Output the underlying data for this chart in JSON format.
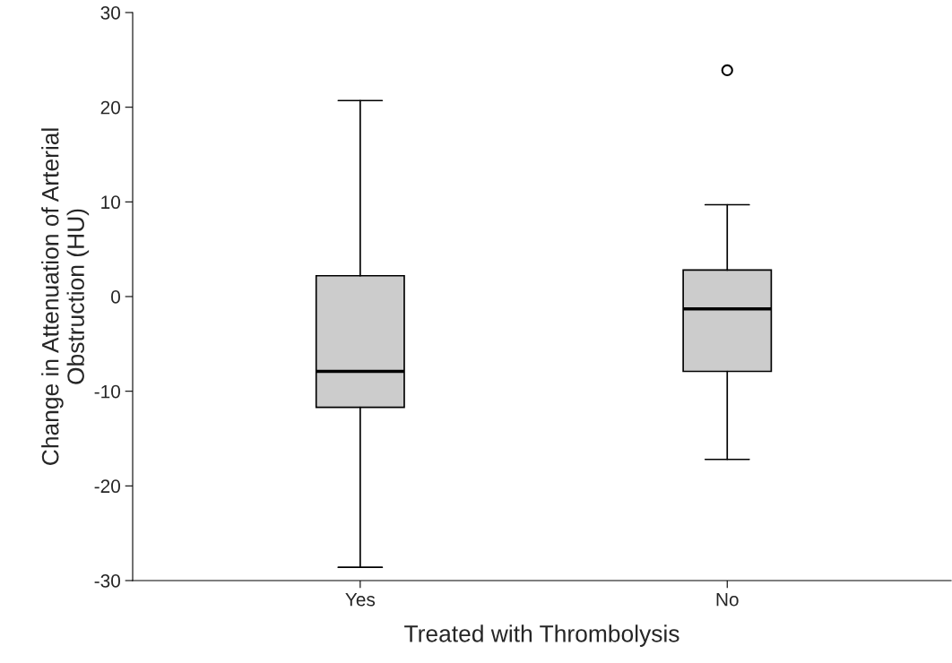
{
  "chart_data": {
    "type": "box",
    "xlabel": "Treated with Thrombolysis",
    "ylabel": "Change in Attenuation of Arterial\nObstruction (HU)",
    "categories": [
      "Yes",
      "No"
    ],
    "boxes": [
      {
        "low": -28.6,
        "q1": -11.7,
        "median": -7.9,
        "q3": 2.2,
        "high": 20.7
      },
      {
        "low": -17.2,
        "q1": -7.9,
        "median": -1.3,
        "q3": 2.8,
        "high": 9.7,
        "outliers": [
          23.9
        ]
      }
    ],
    "color": "#cccccc",
    "ylim": [
      -30,
      30
    ],
    "yticks": [
      -30,
      -20,
      -10,
      0,
      10,
      20,
      30
    ],
    "grid": false
  }
}
